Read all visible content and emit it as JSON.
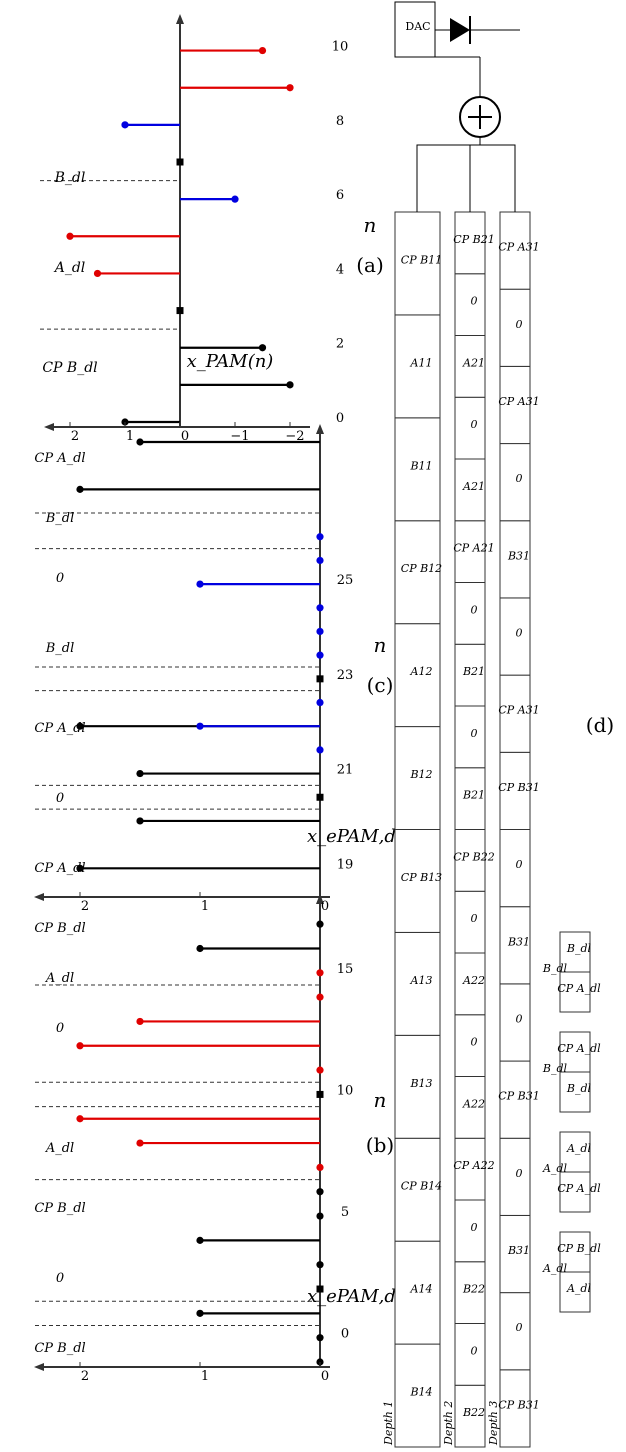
{
  "colors": {
    "black": "#000000",
    "red": "#e00000",
    "blue": "#0000e0"
  },
  "plot_a": {
    "caption": "(a)",
    "xlabel": "n",
    "ylabel": "x_PAM(n)",
    "yticks": [
      "2",
      "1",
      "0",
      "−1",
      "−2"
    ],
    "xticks": [
      "0",
      "2",
      "4",
      "6",
      "8",
      "10"
    ],
    "region_labels": [
      "CP B_dl",
      "A_dl",
      "B_dl"
    ]
  },
  "plot_b": {
    "caption": "(b)",
    "xlabel": "n",
    "ylabel": "x_ePAM,d2(n)",
    "yticks": [
      "2",
      "1",
      "0"
    ],
    "xticks": [
      "0",
      "5",
      "10",
      "15"
    ],
    "region_labels": [
      "CP B_dl",
      "0",
      "CP B_dl",
      "A_dl",
      "0",
      "A_dl",
      "CP B_dl"
    ]
  },
  "plot_c": {
    "caption": "(c)",
    "xlabel": "n",
    "ylabel": "x_ePAM,d2(n)",
    "yticks": [
      "2",
      "1",
      "0"
    ],
    "xticks": [
      "19",
      "21",
      "23",
      "25"
    ],
    "region_labels": [
      "CP A_dl",
      "0",
      "CP A_dl",
      "B_dl",
      "0",
      "B_dl",
      "CP A_dl"
    ]
  },
  "chart_data": [
    {
      "type": "scatter",
      "title": "(a)",
      "xlabel": "n",
      "ylabel": "x_PAM(n)",
      "xlim": [
        0,
        10.5
      ],
      "ylim": [
        -2.3,
        2.3
      ],
      "series": [
        {
          "color": "black",
          "x": [
            0,
            1,
            2
          ],
          "y": [
            1,
            -2,
            -1.5
          ]
        },
        {
          "color": "red",
          "x": [
            4,
            5,
            9,
            10
          ],
          "y": [
            1.5,
            2,
            -2,
            -1.5
          ]
        },
        {
          "color": "blue",
          "x": [
            6,
            8
          ],
          "y": [
            -1,
            1
          ]
        }
      ],
      "zero_markers": [
        3,
        7
      ]
    },
    {
      "type": "scatter",
      "title": "(b)",
      "xlabel": "n",
      "ylabel": "x_ePAM,d2(n)",
      "xlim": [
        -1,
        17.5
      ],
      "ylim": [
        0,
        2.2
      ],
      "series": [
        {
          "color": "black",
          "x": [
            -1,
            0,
            1,
            3,
            4,
            5,
            6,
            16,
            17
          ],
          "y": [
            0,
            0,
            1,
            0,
            1,
            0,
            0,
            1,
            0
          ]
        },
        {
          "color": "red",
          "x": [
            7,
            8,
            9,
            11,
            12,
            13,
            14,
            15
          ],
          "y": [
            0,
            1.5,
            2,
            0,
            2,
            1.5,
            0,
            0
          ]
        }
      ],
      "zero_markers": [
        2,
        10
      ]
    },
    {
      "type": "scatter",
      "title": "(c)",
      "xlabel": "n",
      "ylabel": "x_ePAM,d2(n)",
      "xlim": [
        18.5,
        28
      ],
      "ylim": [
        0,
        2.2
      ],
      "series": [
        {
          "color": "black",
          "x": [
            19,
            20,
            21,
            22,
            27,
            28
          ],
          "y": [
            2,
            1.5,
            1.5,
            2,
            2,
            1.5
          ]
        },
        {
          "color": "blue",
          "x": [
            21.5,
            22,
            22.5,
            23.5,
            24,
            24.5,
            25,
            25.5,
            26
          ],
          "y": [
            0,
            1,
            0,
            0,
            0,
            0,
            1,
            0,
            0
          ]
        }
      ],
      "zero_markers": [
        20.5,
        23
      ]
    }
  ],
  "block_diagram": {
    "caption": "(d)",
    "dac_label": "DAC",
    "depth_labels": [
      "Depth 1",
      "Depth 2",
      "Depth 3"
    ],
    "depth1": [
      "B14",
      "A14",
      "CP B14",
      "B13",
      "A13",
      "CP B13",
      "B12",
      "A12",
      "CP B12",
      "B11",
      "A11",
      "CP B11"
    ],
    "depth2": [
      "B22",
      "0",
      "B22",
      "0",
      "CP A22",
      "A22",
      "0",
      "A22",
      "0",
      "CP B22",
      "B21",
      "0",
      "B21",
      "0",
      "CP A21",
      "A21",
      "0",
      "A21",
      "0",
      "CP B21"
    ],
    "depth3": [
      "CP B31",
      "0",
      "B31",
      "0",
      "CP B31",
      "0",
      "B31",
      "0",
      "CP B31",
      "CP A31",
      "0",
      "B31",
      "0",
      "CP A31",
      "0",
      "CP A31"
    ],
    "legend": [
      "A_dl",
      "CP B_dl",
      "CP A_dl",
      "A_dl",
      "B_dl",
      "CP A_dl",
      "CP A_dl",
      "B_dl"
    ],
    "legend_titles": [
      "A_dl",
      "A_dl",
      "B_dl",
      "B_dl"
    ]
  }
}
